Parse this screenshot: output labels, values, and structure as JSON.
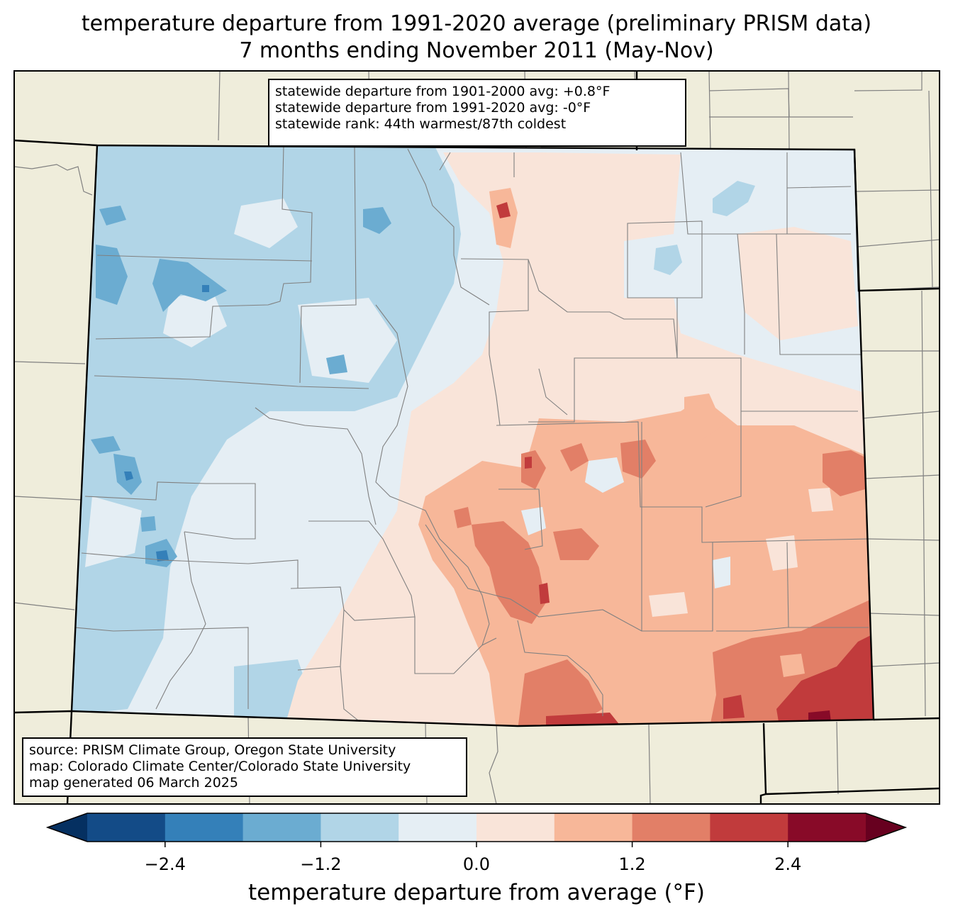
{
  "title": {
    "line1": "temperature departure from 1991-2020 average (preliminary PRISM data)",
    "line2": "7 months ending November 2011 (May-Nov)"
  },
  "stats": {
    "line1": "statewide departure from 1901-2000 avg: +0.8°F",
    "line2": "statewide departure from 1991-2020 avg: -0°F",
    "line3": "statewide rank: 44th warmest/87th coldest"
  },
  "credits": {
    "line1": "source: PRISM Climate Group, Oregon State University",
    "line2": "map: Colorado Climate Center/Colorado State University",
    "line3": "map generated 06 March 2025"
  },
  "colorbar": {
    "label": "temperature departure from average (°F)",
    "ticks": [
      "−2.4",
      "−1.2",
      "0.0",
      "1.2",
      "2.4"
    ],
    "tick_values": [
      -2.4,
      -1.2,
      0.0,
      1.2,
      2.4
    ],
    "range": [
      -3.0,
      3.0
    ],
    "bins": [
      {
        "from": -3.0,
        "to": -2.4,
        "color": "#134b87"
      },
      {
        "from": -2.4,
        "to": -1.8,
        "color": "#3480b9"
      },
      {
        "from": -1.8,
        "to": -1.2,
        "color": "#6bacd1"
      },
      {
        "from": -1.2,
        "to": -0.6,
        "color": "#b1d5e7"
      },
      {
        "from": -0.6,
        "to": 0.0,
        "color": "#e5eef4"
      },
      {
        "from": 0.0,
        "to": 0.6,
        "color": "#f9e4d9"
      },
      {
        "from": 0.6,
        "to": 1.2,
        "color": "#f7b799"
      },
      {
        "from": 1.2,
        "to": 1.8,
        "color": "#e27f67"
      },
      {
        "from": 1.8,
        "to": 2.4,
        "color": "#c13b3c"
      },
      {
        "from": 2.4,
        "to": 3.0,
        "color": "#880a28"
      }
    ],
    "under_color": "#053061",
    "over_color": "#67001f"
  },
  "colors": {
    "background_land": "#efeddb",
    "county_lines": "#808080",
    "state_lines": "#000000"
  }
}
